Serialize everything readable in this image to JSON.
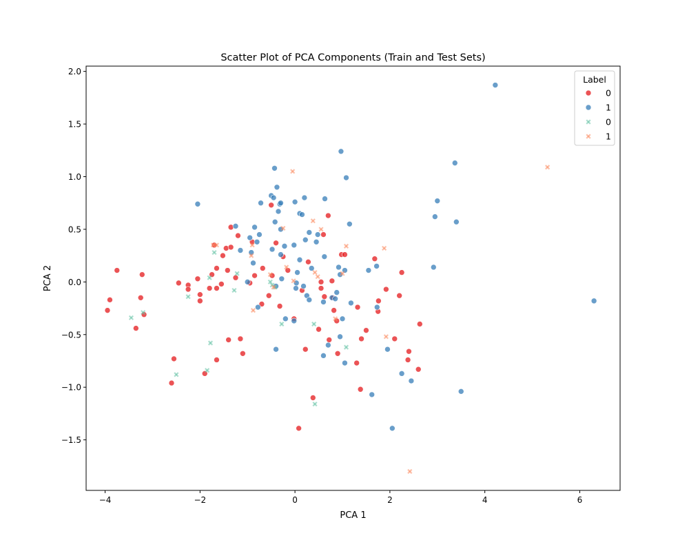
{
  "chart_data": {
    "type": "scatter",
    "title": "Scatter Plot of PCA Components (Train and Test Sets)",
    "xlabel": "PCA 1",
    "ylabel": "PCA 2",
    "xlim": [
      -4.4,
      6.85
    ],
    "ylim": [
      -1.98,
      2.05
    ],
    "xticks": [
      -4,
      -2,
      0,
      2,
      4,
      6
    ],
    "xtick_labels": [
      "−4",
      "−2",
      "0",
      "2",
      "4",
      "6"
    ],
    "yticks": [
      -1.5,
      -1.0,
      -0.5,
      0.0,
      0.5,
      1.0,
      1.5,
      2.0
    ],
    "ytick_labels": [
      "−1.5",
      "−1.0",
      "−0.5",
      "0.0",
      "0.5",
      "1.0",
      "1.5",
      "2.0"
    ],
    "grid": false,
    "legend": {
      "title": "Label",
      "placement": "top-right",
      "entries": [
        {
          "label": "0",
          "color": "#e41a1c",
          "marker": "circle"
        },
        {
          "label": "1",
          "color": "#377eb8",
          "marker": "circle"
        },
        {
          "label": "0",
          "color": "#66c2a5",
          "marker": "x"
        },
        {
          "label": "1",
          "color": "#fc8d62",
          "marker": "x"
        }
      ]
    },
    "series": [
      {
        "label": "0",
        "marker": "circle",
        "color": "#e41a1c",
        "points": [
          [
            -3.95,
            -0.27
          ],
          [
            -3.9,
            -0.17
          ],
          [
            -3.75,
            0.11
          ],
          [
            -3.35,
            -0.44
          ],
          [
            -3.25,
            -0.15
          ],
          [
            -3.22,
            0.07
          ],
          [
            -3.18,
            -0.31
          ],
          [
            -2.6,
            -0.96
          ],
          [
            -2.55,
            -0.73
          ],
          [
            -2.45,
            -0.01
          ],
          [
            -2.25,
            -0.03
          ],
          [
            -2.25,
            -0.07
          ],
          [
            -2.05,
            0.03
          ],
          [
            -2.0,
            -0.12
          ],
          [
            -2.0,
            -0.18
          ],
          [
            -1.9,
            -0.87
          ],
          [
            -1.8,
            -0.06
          ],
          [
            -1.75,
            0.07
          ],
          [
            -1.7,
            0.35
          ],
          [
            -1.65,
            0.13
          ],
          [
            -1.65,
            -0.06
          ],
          [
            -1.65,
            -0.74
          ],
          [
            -1.55,
            -0.02
          ],
          [
            -1.52,
            0.25
          ],
          [
            -1.45,
            0.32
          ],
          [
            -1.42,
            0.11
          ],
          [
            -1.4,
            -0.55
          ],
          [
            -1.35,
            0.33
          ],
          [
            -1.35,
            0.52
          ],
          [
            -1.25,
            0.04
          ],
          [
            -1.2,
            0.44
          ],
          [
            -1.15,
            -0.54
          ],
          [
            -1.1,
            -0.68
          ],
          [
            -0.95,
            -0.01
          ],
          [
            -0.9,
            0.38
          ],
          [
            -0.85,
            0.06
          ],
          [
            -0.7,
            -0.21
          ],
          [
            -0.68,
            0.13
          ],
          [
            -0.55,
            -0.13
          ],
          [
            -0.5,
            0.73
          ],
          [
            -0.48,
            0.06
          ],
          [
            -0.4,
            0.37
          ],
          [
            -0.32,
            -0.23
          ],
          [
            -0.25,
            0.24
          ],
          [
            -0.15,
            0.11
          ],
          [
            -0.02,
            -0.35
          ],
          [
            0.08,
            -1.39
          ],
          [
            0.15,
            -0.08
          ],
          [
            0.22,
            -0.64
          ],
          [
            0.28,
            0.19
          ],
          [
            0.38,
            -1.1
          ],
          [
            0.5,
            -0.45
          ],
          [
            0.55,
            -0.06
          ],
          [
            0.55,
            0.0
          ],
          [
            0.6,
            0.45
          ],
          [
            0.62,
            -0.14
          ],
          [
            0.7,
            0.63
          ],
          [
            0.72,
            -0.55
          ],
          [
            0.78,
            0.01
          ],
          [
            0.8,
            -0.15
          ],
          [
            0.82,
            -0.27
          ],
          [
            0.88,
            -0.37
          ],
          [
            0.9,
            -0.68
          ],
          [
            0.98,
            0.26
          ],
          [
            1.05,
            0.26
          ],
          [
            1.3,
            -0.77
          ],
          [
            1.32,
            -0.24
          ],
          [
            1.38,
            -1.02
          ],
          [
            1.4,
            -0.54
          ],
          [
            1.5,
            -0.46
          ],
          [
            1.68,
            0.22
          ],
          [
            1.75,
            -0.28
          ],
          [
            1.76,
            -0.18
          ],
          [
            1.92,
            -0.07
          ],
          [
            2.1,
            -0.54
          ],
          [
            2.2,
            -0.13
          ],
          [
            2.25,
            0.09
          ],
          [
            2.38,
            -0.74
          ],
          [
            2.4,
            -0.66
          ],
          [
            2.6,
            -0.83
          ],
          [
            2.63,
            -0.4
          ]
        ]
      },
      {
        "label": "1",
        "marker": "circle",
        "color": "#377eb8",
        "points": [
          [
            -2.05,
            0.74
          ],
          [
            -1.25,
            0.53
          ],
          [
            -1.15,
            0.3
          ],
          [
            -1.0,
            0.0
          ],
          [
            -0.95,
            0.42
          ],
          [
            -0.92,
            0.28
          ],
          [
            -0.88,
            0.18
          ],
          [
            -0.85,
            0.52
          ],
          [
            -0.8,
            0.38
          ],
          [
            -0.78,
            -0.24
          ],
          [
            -0.75,
            0.45
          ],
          [
            -0.72,
            0.75
          ],
          [
            -0.5,
            0.82
          ],
          [
            -0.48,
            0.31
          ],
          [
            -0.45,
            0.8
          ],
          [
            -0.43,
            1.08
          ],
          [
            -0.42,
            0.57
          ],
          [
            -0.4,
            -0.64
          ],
          [
            -0.4,
            -0.04
          ],
          [
            -0.38,
            0.9
          ],
          [
            -0.35,
            0.67
          ],
          [
            -0.32,
            0.74
          ],
          [
            -0.3,
            0.75
          ],
          [
            -0.3,
            0.5
          ],
          [
            -0.3,
            0.26
          ],
          [
            -0.28,
            0.03
          ],
          [
            -0.22,
            0.34
          ],
          [
            -0.2,
            -0.35
          ],
          [
            -0.02,
            -0.37
          ],
          [
            -0.02,
            0.35
          ],
          [
            0.0,
            0.76
          ],
          [
            0.02,
            -0.06
          ],
          [
            0.03,
            -0.01
          ],
          [
            0.05,
            0.09
          ],
          [
            0.1,
            0.65
          ],
          [
            0.1,
            0.21
          ],
          [
            0.15,
            0.64
          ],
          [
            0.18,
            -0.04
          ],
          [
            0.2,
            0.8
          ],
          [
            0.22,
            0.4
          ],
          [
            0.25,
            -0.13
          ],
          [
            0.3,
            0.47
          ],
          [
            0.3,
            -0.17
          ],
          [
            0.35,
            0.13
          ],
          [
            0.45,
            0.38
          ],
          [
            0.48,
            0.45
          ],
          [
            0.6,
            -0.19
          ],
          [
            0.6,
            -0.7
          ],
          [
            0.62,
            0.24
          ],
          [
            0.63,
            0.79
          ],
          [
            0.7,
            -0.6
          ],
          [
            0.78,
            -0.15
          ],
          [
            0.85,
            -0.16
          ],
          [
            0.88,
            -0.1
          ],
          [
            0.92,
            0.14
          ],
          [
            0.95,
            0.07
          ],
          [
            0.95,
            -0.52
          ],
          [
            0.97,
            1.24
          ],
          [
            1.0,
            -0.35
          ],
          [
            1.05,
            0.11
          ],
          [
            1.08,
            0.99
          ],
          [
            1.05,
            -0.77
          ],
          [
            1.15,
            0.55
          ],
          [
            1.18,
            -0.2
          ],
          [
            1.55,
            0.11
          ],
          [
            1.62,
            -1.07
          ],
          [
            1.72,
            0.15
          ],
          [
            1.73,
            -0.24
          ],
          [
            1.95,
            -0.64
          ],
          [
            2.05,
            -1.39
          ],
          [
            2.25,
            -0.87
          ],
          [
            2.45,
            -0.94
          ],
          [
            2.92,
            0.14
          ],
          [
            2.95,
            0.62
          ],
          [
            3.0,
            0.77
          ],
          [
            3.37,
            1.13
          ],
          [
            3.4,
            0.57
          ],
          [
            3.5,
            -1.04
          ],
          [
            4.22,
            1.87
          ],
          [
            6.3,
            -0.18
          ]
        ]
      },
      {
        "label": "0",
        "marker": "x",
        "color": "#66c2a5",
        "points": [
          [
            -3.45,
            -0.34
          ],
          [
            -3.2,
            -0.29
          ],
          [
            -2.5,
            -0.88
          ],
          [
            -2.25,
            -0.14
          ],
          [
            -1.85,
            -0.84
          ],
          [
            -1.8,
            0.04
          ],
          [
            -1.78,
            -0.58
          ],
          [
            -1.7,
            0.28
          ],
          [
            -1.28,
            -0.08
          ],
          [
            -1.22,
            0.08
          ],
          [
            -0.52,
            0.0
          ],
          [
            -0.48,
            -0.03
          ],
          [
            -0.42,
            -0.05
          ],
          [
            -0.28,
            -0.4
          ],
          [
            0.4,
            -0.4
          ],
          [
            0.42,
            -1.16
          ],
          [
            1.08,
            -0.62
          ]
        ]
      },
      {
        "label": "1",
        "marker": "x",
        "color": "#fc8d62",
        "points": [
          [
            -1.72,
            0.35
          ],
          [
            -1.65,
            0.35
          ],
          [
            -0.92,
            0.25
          ],
          [
            -0.9,
            0.35
          ],
          [
            -0.88,
            -0.27
          ],
          [
            -0.52,
            0.07
          ],
          [
            -0.45,
            -0.05
          ],
          [
            -0.25,
            0.51
          ],
          [
            -0.18,
            0.14
          ],
          [
            -0.05,
            1.05
          ],
          [
            -0.03,
            0.01
          ],
          [
            0.38,
            0.58
          ],
          [
            0.42,
            0.09
          ],
          [
            0.48,
            0.05
          ],
          [
            0.55,
            0.5
          ],
          [
            0.85,
            -0.35
          ],
          [
            1.0,
            0.08
          ],
          [
            1.08,
            0.34
          ],
          [
            1.88,
            0.32
          ],
          [
            1.92,
            -0.52
          ],
          [
            2.42,
            -1.8
          ],
          [
            5.32,
            1.09
          ]
        ]
      }
    ]
  }
}
